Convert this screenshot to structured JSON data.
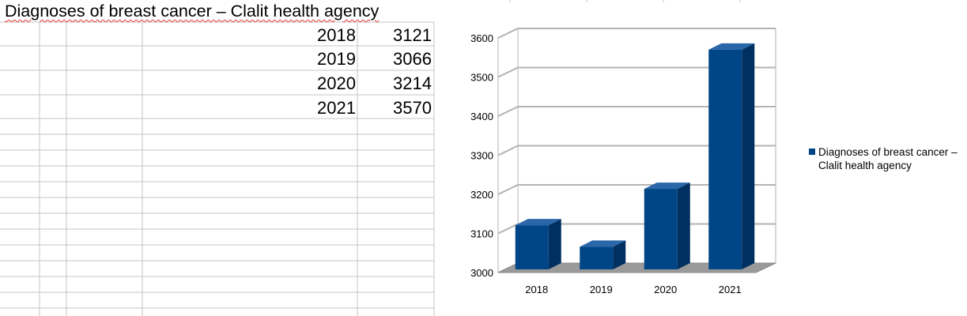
{
  "sheet": {
    "title": "Diagnoses of breast cancer – Clalit health agency",
    "rows": [
      {
        "year": "2018",
        "value": "3121"
      },
      {
        "year": "2019",
        "value": "3066"
      },
      {
        "year": "2020",
        "value": "3214"
      },
      {
        "year": "2021",
        "value": "3570"
      }
    ]
  },
  "colors": {
    "bar": "#004586",
    "bar_dark": "#003060",
    "bar_top": "#2a66a8",
    "gridline": "#b3b3b3",
    "sheet_grid": "#c6c6c6"
  },
  "chart_data": {
    "type": "bar",
    "title": "",
    "categories": [
      "2018",
      "2019",
      "2020",
      "2021"
    ],
    "series": [
      {
        "name": "Diagnoses of breast cancer – Clalit health agency",
        "values": [
          3121,
          3066,
          3214,
          3570
        ]
      }
    ],
    "ylim": [
      3000,
      3600
    ],
    "yticks": [
      "3000",
      "3100",
      "3200",
      "3300",
      "3400",
      "3500",
      "3600"
    ],
    "xlabel": "",
    "ylabel": "",
    "grid": true,
    "legend": {
      "position": "right",
      "lines": [
        "Diagnoses of breast cancer –",
        "Clalit health agency"
      ]
    }
  }
}
